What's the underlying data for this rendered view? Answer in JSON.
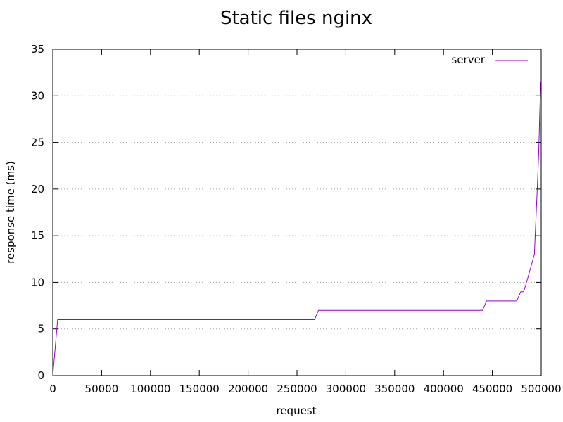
{
  "chart_data": {
    "type": "line",
    "title": "Static files nginx",
    "xlabel": "request",
    "ylabel": "response time (ms)",
    "xlim": [
      0,
      500000
    ],
    "ylim": [
      0,
      35
    ],
    "x_ticks": [
      0,
      50000,
      100000,
      150000,
      200000,
      250000,
      300000,
      350000,
      400000,
      450000,
      500000
    ],
    "y_ticks": [
      0,
      5,
      10,
      15,
      20,
      25,
      30,
      35
    ],
    "grid": "horizontal dotted",
    "legend": {
      "position": "top-right"
    },
    "series": [
      {
        "name": "server",
        "color": "#9400d3",
        "x": [
          0,
          5000,
          268000,
          272000,
          440000,
          444000,
          475000,
          479000,
          482000,
          485000,
          493000,
          496000,
          497500,
          498500,
          499500,
          500000
        ],
        "y": [
          0,
          6,
          6,
          7,
          7,
          8,
          8,
          9,
          9,
          10,
          13,
          20,
          24,
          28,
          31.5,
          31.5
        ]
      }
    ]
  }
}
